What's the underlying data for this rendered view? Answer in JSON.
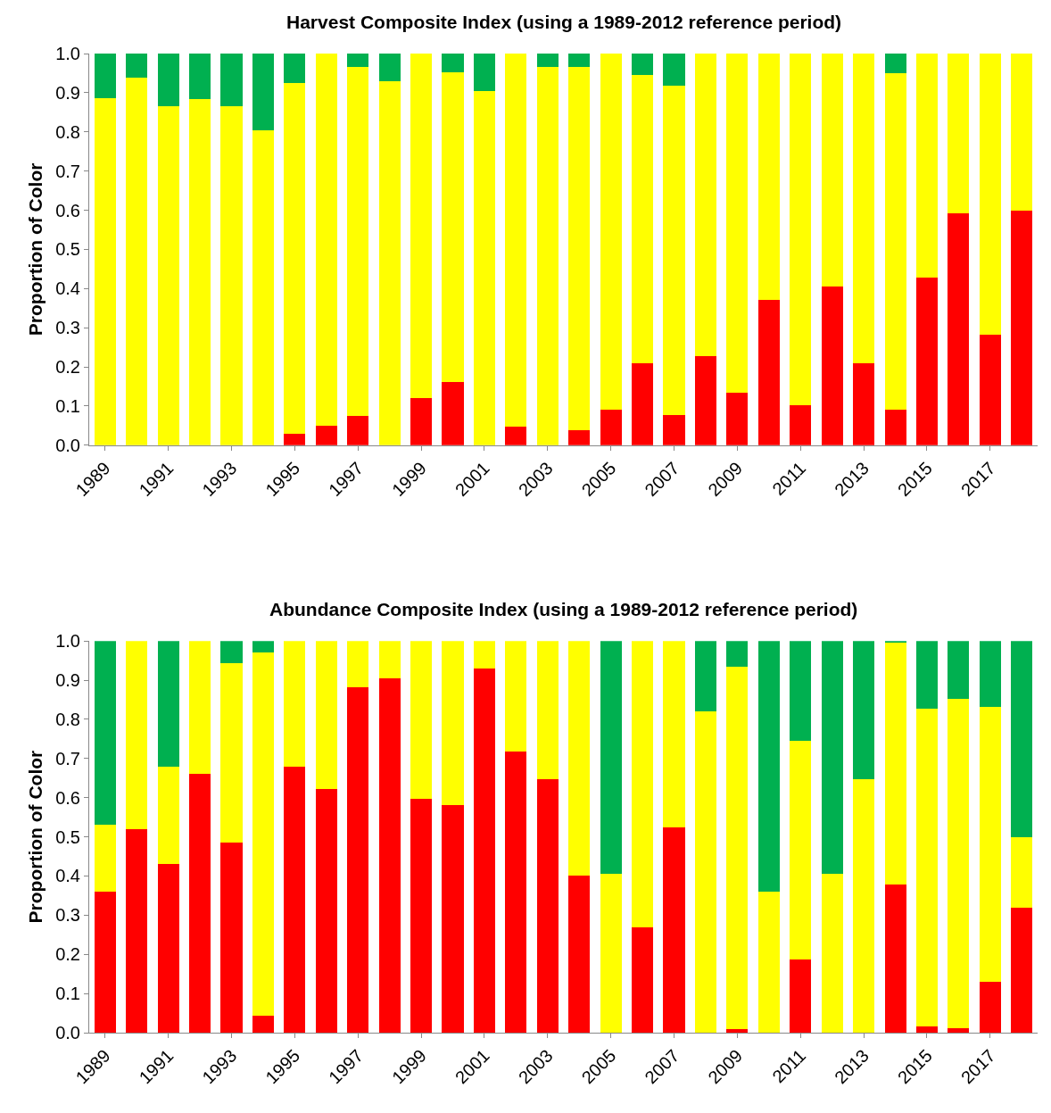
{
  "chart_data": [
    {
      "type": "bar",
      "stacked": true,
      "title": "Harvest Composite Index (using a 1989-2012 reference period)",
      "ylabel": "Proportion of Color",
      "categories": [
        "1989",
        null,
        "1991",
        null,
        "1993",
        null,
        "1995",
        null,
        "1997",
        null,
        "1999",
        null,
        "2001",
        null,
        "2003",
        null,
        "2005",
        null,
        "2007",
        null,
        "2009",
        null,
        "2011",
        null,
        "2013",
        null,
        "2015",
        null,
        "2017",
        null
      ],
      "series": [
        {
          "color": "#ff0000",
          "values": [
            0,
            0,
            0,
            0,
            0,
            0,
            0.03,
            0.05,
            0.075,
            0,
            0.12,
            0.162,
            0,
            0.048,
            0,
            0.038,
            0.09,
            0.21,
            0.077,
            0.228,
            0.133,
            0.37,
            0.102,
            0.405,
            0.21,
            0.09,
            0.428,
            0.593,
            0.283,
            0.6
          ]
        },
        {
          "color": "#ffff00",
          "values": [
            0.886,
            0.938,
            0.866,
            0.883,
            0.866,
            0.805,
            0.894,
            0.95,
            0.89,
            0.93,
            0.88,
            0.791,
            0.905,
            0.952,
            0.966,
            0.928,
            0.91,
            0.735,
            0.841,
            0.772,
            0.867,
            0.63,
            0.898,
            0.595,
            0.79,
            0.86,
            0.572,
            0.407,
            0.717,
            0.4
          ]
        },
        {
          "color": "#00b050",
          "values": [
            0.114,
            0.062,
            0.134,
            0.117,
            0.134,
            0.195,
            0.076,
            0,
            0.035,
            0.07,
            0,
            0.047,
            0.095,
            0,
            0.034,
            0.034,
            0,
            0.055,
            0.082,
            0,
            0,
            0,
            0,
            0,
            0,
            0.05,
            0,
            0,
            0,
            0
          ]
        }
      ],
      "ylim": [
        0,
        1
      ],
      "yticks": [
        {
          "value": 0,
          "label": "0.0"
        },
        {
          "value": 0.1,
          "label": "0.1"
        },
        {
          "value": 0.2,
          "label": "0.2"
        },
        {
          "value": 0.3,
          "label": "0.3"
        },
        {
          "value": 0.4,
          "label": "0.4"
        },
        {
          "value": 0.5,
          "label": "0.5"
        },
        {
          "value": 0.6,
          "label": "0.6"
        },
        {
          "value": 0.7,
          "label": "0.7"
        },
        {
          "value": 0.8,
          "label": "0.8"
        },
        {
          "value": 0.9,
          "label": "0.9"
        },
        {
          "value": 1,
          "label": "1.0"
        }
      ],
      "tick_labels": "xy"
    },
    {
      "type": "bar",
      "stacked": true,
      "title": "Abundance Composite Index (using a 1989-2012 reference period)",
      "ylabel": "Proportion of Color",
      "categories": [
        "1989",
        null,
        "1991",
        null,
        "1993",
        null,
        "1995",
        null,
        "1997",
        null,
        "1999",
        null,
        "2001",
        null,
        "2003",
        null,
        "2005",
        null,
        "2007",
        null,
        "2009",
        null,
        "2011",
        null,
        "2013",
        null,
        "2015",
        null,
        "2017",
        null
      ],
      "series": [
        {
          "color": "#ff0000",
          "values": [
            0.36,
            0.52,
            0.43,
            0.66,
            0.485,
            0.043,
            0.68,
            0.622,
            0.882,
            0.905,
            0.596,
            0.582,
            0.93,
            0.717,
            0.648,
            0.4,
            0,
            0.27,
            0.524,
            0,
            0.01,
            0,
            0.187,
            0,
            0,
            0.378,
            0.017,
            0.012,
            0.13,
            0.32
          ]
        },
        {
          "color": "#ffff00",
          "values": [
            0.17,
            0.48,
            0.25,
            0.34,
            0.458,
            0.927,
            0.32,
            0.378,
            0.118,
            0.095,
            0.404,
            0.418,
            0.07,
            0.283,
            0.352,
            0.6,
            0.405,
            0.73,
            0.476,
            0.82,
            0.925,
            0.36,
            0.559,
            0.405,
            0.648,
            0.617,
            0.811,
            0.84,
            0.702,
            0.18
          ]
        },
        {
          "color": "#00b050",
          "values": [
            0.47,
            0,
            0.32,
            0,
            0.057,
            0.03,
            0,
            0,
            0,
            0,
            0,
            0,
            0,
            0,
            0,
            0,
            0.595,
            0,
            0,
            0.18,
            0.065,
            0.64,
            0.254,
            0.595,
            0.352,
            0.005,
            0.172,
            0.148,
            0.168,
            0.5
          ]
        }
      ],
      "ylim": [
        0,
        1
      ],
      "yticks": [
        {
          "value": 0,
          "label": "0.0"
        },
        {
          "value": 0.1,
          "label": "0.1"
        },
        {
          "value": 0.2,
          "label": "0.2"
        },
        {
          "value": 0.3,
          "label": "0.3"
        },
        {
          "value": 0.4,
          "label": "0.4"
        },
        {
          "value": 0.5,
          "label": "0.5"
        },
        {
          "value": 0.6,
          "label": "0.6"
        },
        {
          "value": 0.7,
          "label": "0.7"
        },
        {
          "value": 0.8,
          "label": "0.8"
        },
        {
          "value": 0.9,
          "label": "0.9"
        },
        {
          "value": 1,
          "label": "1.0"
        }
      ],
      "tick_labels": "xy"
    }
  ]
}
